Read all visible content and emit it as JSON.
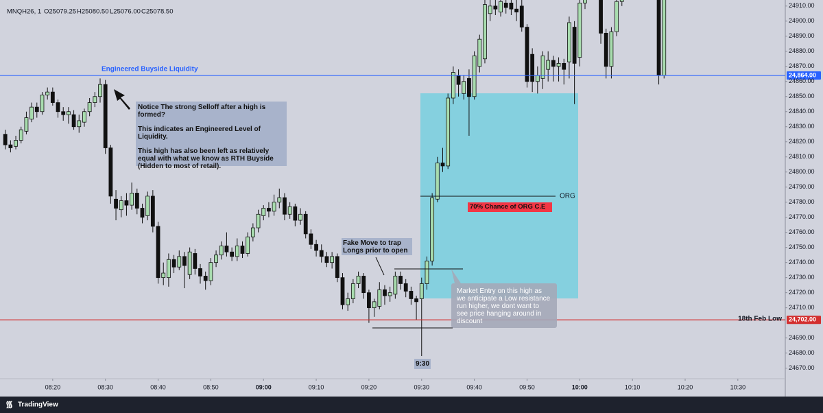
{
  "chart_data": {
    "type": "candlestick",
    "title": "MNQH26, 1",
    "ohlc_legend": [
      "O25079.25",
      "H25080.50",
      "L25076.00",
      "C25078.50"
    ],
    "up_color": "#a8dcae",
    "down_color": "#111111",
    "xlim": [
      "08:10",
      "10:39"
    ],
    "xticks": [
      "08:20",
      "08:30",
      "08:40",
      "08:50",
      "09:00",
      "09:10",
      "09:20",
      "09:30",
      "09:40",
      "09:50",
      "10:00",
      "10:10",
      "10:20",
      "10:30"
    ],
    "ylim": [
      24663,
      24914
    ],
    "yticks": [
      {
        "value": 24910,
        "label": "24910.00"
      },
      {
        "value": 24900,
        "label": "24900.00"
      },
      {
        "value": 24890,
        "label": "24890.00"
      },
      {
        "value": 24880,
        "label": "24880.00"
      },
      {
        "value": 24870,
        "label": "24870.00"
      },
      {
        "value": 24860,
        "label": "24860.00"
      },
      {
        "value": 24850,
        "label": "24850.00"
      },
      {
        "value": 24840,
        "label": "24840.00"
      },
      {
        "value": 24830,
        "label": "24830.00"
      },
      {
        "value": 24820,
        "label": "24820.00"
      },
      {
        "value": 24810,
        "label": "24810.00"
      },
      {
        "value": 24800,
        "label": "24800.00"
      },
      {
        "value": 24790,
        "label": "24790.00"
      },
      {
        "value": 24780,
        "label": "24780.00"
      },
      {
        "value": 24770,
        "label": "24770.00"
      },
      {
        "value": 24760,
        "label": "24760.00"
      },
      {
        "value": 24750,
        "label": "24750.00"
      },
      {
        "value": 24740,
        "label": "24740.00"
      },
      {
        "value": 24730,
        "label": "24730.00"
      },
      {
        "value": 24720,
        "label": "24720.00"
      },
      {
        "value": 24710,
        "label": "24710.00"
      },
      {
        "value": 24690,
        "label": "24690.00"
      },
      {
        "value": 24680,
        "label": "24680.00"
      },
      {
        "value": 24670,
        "label": "24670.00"
      }
    ],
    "grid": false,
    "x": [
      "08:11",
      "08:12",
      "08:13",
      "08:14",
      "08:15",
      "08:16",
      "08:17",
      "08:18",
      "08:19",
      "08:20",
      "08:21",
      "08:22",
      "08:23",
      "08:24",
      "08:25",
      "08:26",
      "08:27",
      "08:28",
      "08:29",
      "08:30",
      "08:31",
      "08:32",
      "08:33",
      "08:34",
      "08:35",
      "08:36",
      "08:37",
      "08:38",
      "08:39",
      "08:40",
      "08:41",
      "08:42",
      "08:43",
      "08:44",
      "08:45",
      "08:46",
      "08:47",
      "08:48",
      "08:49",
      "08:50",
      "08:51",
      "08:52",
      "08:53",
      "08:54",
      "08:55",
      "08:56",
      "08:57",
      "08:58",
      "08:59",
      "09:00",
      "09:01",
      "09:02",
      "09:03",
      "09:04",
      "09:05",
      "09:06",
      "09:07",
      "09:08",
      "09:09",
      "09:10",
      "09:11",
      "09:12",
      "09:13",
      "09:14",
      "09:15",
      "09:16",
      "09:17",
      "09:18",
      "09:19",
      "09:20",
      "09:21",
      "09:22",
      "09:23",
      "09:24",
      "09:25",
      "09:26",
      "09:27",
      "09:28",
      "09:29",
      "09:30",
      "09:31",
      "09:32",
      "09:33",
      "09:34",
      "09:35",
      "09:36",
      "09:37",
      "09:38",
      "09:39",
      "09:40",
      "09:41",
      "09:42",
      "09:43",
      "09:44",
      "09:45",
      "09:46",
      "09:47",
      "09:48",
      "09:49",
      "09:50",
      "09:51",
      "09:52",
      "09:53",
      "09:54",
      "09:55",
      "09:56",
      "09:57",
      "09:58",
      "09:59",
      "10:00",
      "10:01",
      "10:02",
      "10:03",
      "10:04",
      "10:05",
      "10:06",
      "10:07",
      "10:08",
      "10:09",
      "10:10",
      "10:11",
      "10:12",
      "10:13",
      "10:14",
      "10:15",
      "10:16"
    ],
    "ohlc": [
      [
        24825,
        24828,
        24815,
        24818
      ],
      [
        24818,
        24821,
        24813,
        24816
      ],
      [
        24817,
        24824,
        24815,
        24821
      ],
      [
        24821,
        24830,
        24819,
        24828
      ],
      [
        24827,
        24840,
        24825,
        24836
      ],
      [
        24835,
        24846,
        24833,
        24843
      ],
      [
        24843,
        24846,
        24836,
        24840
      ],
      [
        24840,
        24853,
        24838,
        24851
      ],
      [
        24851,
        24856,
        24848,
        24853
      ],
      [
        24853,
        24856,
        24844,
        24846
      ],
      [
        24846,
        24848,
        24836,
        24840
      ],
      [
        24840,
        24843,
        24834,
        24838
      ],
      [
        24838,
        24843,
        24832,
        24840
      ],
      [
        24838,
        24841,
        24828,
        24830
      ],
      [
        24830,
        24838,
        24826,
        24834
      ],
      [
        24833,
        24842,
        24830,
        24840
      ],
      [
        24840,
        24849,
        24837,
        24846
      ],
      [
        24846,
        24853,
        24843,
        24850
      ],
      [
        24850,
        24862,
        24846,
        24858
      ],
      [
        24858,
        24861,
        24812,
        24816
      ],
      [
        24816,
        24818,
        24779,
        24784
      ],
      [
        24782,
        24788,
        24768,
        24776
      ],
      [
        24775,
        24784,
        24770,
        24781
      ],
      [
        24781,
        24786,
        24771,
        24778
      ],
      [
        24778,
        24793,
        24775,
        24786
      ],
      [
        24786,
        24789,
        24772,
        24776
      ],
      [
        24776,
        24779,
        24766,
        24770
      ],
      [
        24771,
        24787,
        24768,
        24784
      ],
      [
        24784,
        24788,
        24760,
        24764
      ],
      [
        24764,
        24767,
        24726,
        24730
      ],
      [
        24730,
        24740,
        24725,
        24733
      ],
      [
        24730,
        24746,
        24724,
        24742
      ],
      [
        24742,
        24745,
        24733,
        24737
      ],
      [
        24737,
        24748,
        24735,
        24744
      ],
      [
        24744,
        24747,
        24723,
        24738
      ],
      [
        24732,
        24750,
        24729,
        24747
      ],
      [
        24746,
        24749,
        24732,
        24736
      ],
      [
        24736,
        24739,
        24726,
        24731
      ],
      [
        24731,
        24734,
        24722,
        24728
      ],
      [
        24728,
        24743,
        24725,
        24740
      ],
      [
        24740,
        24748,
        24737,
        24745
      ],
      [
        24745,
        24754,
        24742,
        24751
      ],
      [
        24751,
        24760,
        24744,
        24747
      ],
      [
        24747,
        24750,
        24741,
        24744
      ],
      [
        24744,
        24756,
        24741,
        24751
      ],
      [
        24751,
        24754,
        24743,
        24746
      ],
      [
        24746,
        24760,
        24744,
        24757
      ],
      [
        24757,
        24766,
        24754,
        24763
      ],
      [
        24763,
        24775,
        24760,
        24772
      ],
      [
        24771,
        24778,
        24768,
        24776
      ],
      [
        24776,
        24780,
        24770,
        24774
      ],
      [
        24774,
        24785,
        24771,
        24780
      ],
      [
        24780,
        24789,
        24776,
        24783
      ],
      [
        24783,
        24786,
        24768,
        24772
      ],
      [
        24772,
        24780,
        24769,
        24777
      ],
      [
        24777,
        24779,
        24764,
        24768
      ],
      [
        24768,
        24776,
        24765,
        24772
      ],
      [
        24772,
        24774,
        24756,
        24759
      ],
      [
        24759,
        24762,
        24749,
        24752
      ],
      [
        24752,
        24755,
        24744,
        24748
      ],
      [
        24748,
        24752,
        24740,
        24744
      ],
      [
        24744,
        24747,
        24737,
        24740
      ],
      [
        24740,
        24747,
        24736,
        24744
      ],
      [
        24744,
        24746,
        24727,
        24730
      ],
      [
        24730,
        24733,
        24709,
        24712
      ],
      [
        24712,
        24720,
        24708,
        24716
      ],
      [
        24716,
        24729,
        24713,
        24726
      ],
      [
        24726,
        24734,
        24723,
        24731
      ],
      [
        24731,
        24733,
        24716,
        24720
      ],
      [
        24720,
        24722,
        24700,
        24710
      ],
      [
        24710,
        24716,
        24704,
        24714
      ],
      [
        24711,
        24727,
        24709,
        24722
      ],
      [
        24722,
        24725,
        24712,
        24718
      ],
      [
        24718,
        24724,
        24714,
        24720
      ],
      [
        24719,
        24734,
        24716,
        24731
      ],
      [
        24731,
        24734,
        24722,
        24726
      ],
      [
        24726,
        24729,
        24717,
        24721
      ],
      [
        24721,
        24724,
        24712,
        24716
      ],
      [
        24716,
        24718,
        24702,
        24714
      ],
      [
        24716,
        24730,
        24678,
        24726
      ],
      [
        24726,
        24744,
        24722,
        24741
      ],
      [
        24741,
        24786,
        24738,
        24783
      ],
      [
        24782,
        24810,
        24780,
        24806
      ],
      [
        24806,
        24816,
        24800,
        24804
      ],
      [
        24804,
        24852,
        24802,
        24849
      ],
      [
        24849,
        24870,
        24845,
        24866
      ],
      [
        24864,
        24868,
        24850,
        24858
      ],
      [
        24852,
        24864,
        24848,
        24860
      ],
      [
        24862,
        24868,
        24824,
        24850
      ],
      [
        24850,
        24880,
        24848,
        24877
      ],
      [
        24870,
        24891,
        24866,
        24888
      ],
      [
        24875,
        24916,
        24872,
        24911
      ],
      [
        24905,
        24916,
        24900,
        24910
      ],
      [
        24910,
        24915,
        24904,
        24908
      ],
      [
        24906,
        24918,
        24903,
        24913
      ],
      [
        24912,
        24918,
        24905,
        24909
      ],
      [
        24912,
        24915,
        24904,
        24908
      ],
      [
        24908,
        24915,
        24900,
        24906
      ],
      [
        24910,
        24914,
        24893,
        24896
      ],
      [
        24896,
        24898,
        24856,
        24860
      ],
      [
        24878,
        24882,
        24853,
        24860
      ],
      [
        24860,
        24870,
        24852,
        24864
      ],
      [
        24862,
        24880,
        24855,
        24877
      ],
      [
        24868,
        24880,
        24860,
        24874
      ],
      [
        24874,
        24877,
        24860,
        24870
      ],
      [
        24870,
        24876,
        24860,
        24872
      ],
      [
        24872,
        24875,
        24858,
        24868
      ],
      [
        24873,
        24903,
        24862,
        24899
      ],
      [
        24896,
        24900,
        24845,
        24872
      ],
      [
        24876,
        24918,
        24870,
        24912
      ],
      [
        24912,
        24925,
        24908,
        24918
      ],
      [
        24918,
        24930,
        24914,
        24925
      ],
      [
        24925,
        24930,
        24915,
        24922
      ],
      [
        24920,
        24925,
        24885,
        24892
      ],
      [
        24892,
        24895,
        24862,
        24870
      ],
      [
        24870,
        24896,
        24862,
        24893
      ],
      [
        24893,
        24920,
        24890,
        24913
      ],
      [
        24913,
        24928,
        24910,
        24920
      ],
      [
        24920,
        24932,
        24916,
        24926
      ],
      [
        24926,
        24930,
        24918,
        24922
      ],
      [
        24922,
        24934,
        24919,
        24928
      ],
      [
        24928,
        24932,
        24921,
        24925
      ],
      [
        24925,
        24935,
        24922,
        24930
      ],
      [
        24930,
        24933,
        24923,
        24927
      ],
      [
        24927,
        24930,
        24858,
        24864
      ],
      [
        24864,
        24926,
        24862,
        24920
      ]
    ],
    "levels": [
      {
        "value": 24864,
        "label": "24,864.00",
        "name": "Engineered Buyside Liquidity",
        "color": "#2962ff"
      },
      {
        "value": 24702,
        "label": "24,702.00",
        "name": "18th Feb Low",
        "color": "#d32f2f"
      }
    ],
    "annotations": {
      "notice": [
        "Notice The strong Selloff after a high is formed?",
        "This indicates an Engineered Level of Liquidity.",
        "This high has also been left as relatively equal with what we know as RTH Buyside (Hidden to most of retail)."
      ],
      "fake_move": "Fake Move to trap Longs prior to open",
      "org": "ORG",
      "org_chance": "70% Chance of ORG C.E",
      "market_entry": "Market Entry on this high as we anticipate a Low resistance run higher, we dont want to see price hanging around in discount",
      "open_time": "9:30"
    },
    "branding": "TradingView"
  }
}
